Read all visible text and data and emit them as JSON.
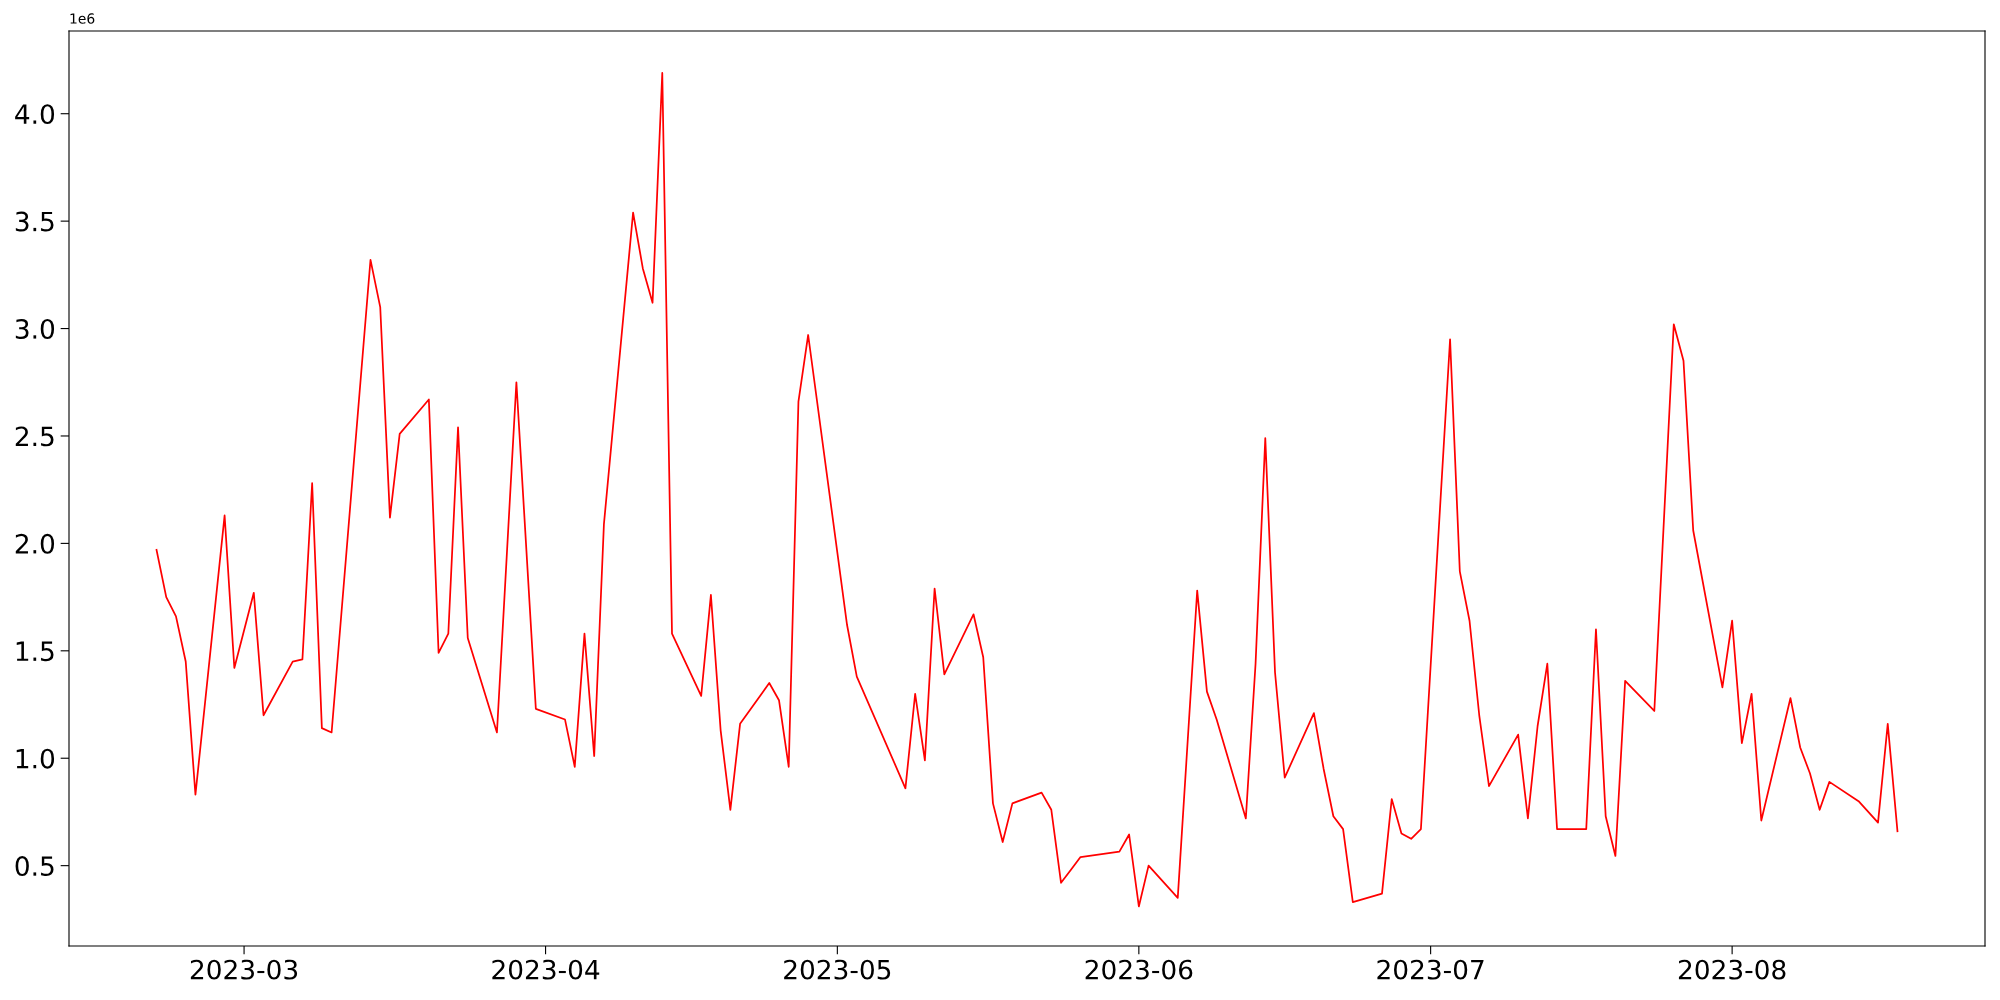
{
  "chart_data": {
    "type": "line",
    "x": [
      "2023-02-20",
      "2023-02-21",
      "2023-02-22",
      "2023-02-23",
      "2023-02-24",
      "2023-02-27",
      "2023-02-28",
      "2023-03-02",
      "2023-03-03",
      "2023-03-06",
      "2023-03-07",
      "2023-03-08",
      "2023-03-09",
      "2023-03-10",
      "2023-03-14",
      "2023-03-15",
      "2023-03-16",
      "2023-03-17",
      "2023-03-20",
      "2023-03-21",
      "2023-03-22",
      "2023-03-23",
      "2023-03-24",
      "2023-03-27",
      "2023-03-29",
      "2023-03-31",
      "2023-04-03",
      "2023-04-04",
      "2023-04-05",
      "2023-04-06",
      "2023-04-07",
      "2023-04-10",
      "2023-04-11",
      "2023-04-12",
      "2023-04-13",
      "2023-04-14",
      "2023-04-17",
      "2023-04-18",
      "2023-04-19",
      "2023-04-20",
      "2023-04-21",
      "2023-04-24",
      "2023-04-25",
      "2023-04-26",
      "2023-04-27",
      "2023-04-28",
      "2023-05-02",
      "2023-05-03",
      "2023-05-08",
      "2023-05-09",
      "2023-05-10",
      "2023-05-11",
      "2023-05-12",
      "2023-05-15",
      "2023-05-16",
      "2023-05-17",
      "2023-05-18",
      "2023-05-19",
      "2023-05-22",
      "2023-05-23",
      "2023-05-24",
      "2023-05-25",
      "2023-05-26",
      "2023-05-30",
      "2023-05-31",
      "2023-06-01",
      "2023-06-02",
      "2023-06-05",
      "2023-06-07",
      "2023-06-08",
      "2023-06-09",
      "2023-06-12",
      "2023-06-13",
      "2023-06-14",
      "2023-06-15",
      "2023-06-16",
      "2023-06-19",
      "2023-06-20",
      "2023-06-21",
      "2023-06-22",
      "2023-06-23",
      "2023-06-26",
      "2023-06-27",
      "2023-06-28",
      "2023-06-29",
      "2023-06-30",
      "2023-07-03",
      "2023-07-04",
      "2023-07-05",
      "2023-07-06",
      "2023-07-07",
      "2023-07-10",
      "2023-07-11",
      "2023-07-12",
      "2023-07-13",
      "2023-07-14",
      "2023-07-17",
      "2023-07-18",
      "2023-07-19",
      "2023-07-20",
      "2023-07-21",
      "2023-07-24",
      "2023-07-26",
      "2023-07-27",
      "2023-07-28",
      "2023-07-31",
      "2023-08-01",
      "2023-08-02",
      "2023-08-03",
      "2023-08-04",
      "2023-08-07",
      "2023-08-08",
      "2023-08-09",
      "2023-08-10",
      "2023-08-11",
      "2023-08-14",
      "2023-08-16",
      "2023-08-17",
      "2023-08-18"
    ],
    "series": [
      {
        "color": "#ff0000",
        "values": [
          1.97,
          1.75,
          1.66,
          1.45,
          0.83,
          2.13,
          1.42,
          1.77,
          1.2,
          1.45,
          1.46,
          2.28,
          1.14,
          1.12,
          3.32,
          3.1,
          2.12,
          2.51,
          2.67,
          1.49,
          1.58,
          2.54,
          1.56,
          1.12,
          2.75,
          1.23,
          1.18,
          0.96,
          1.58,
          1.01,
          2.09,
          3.54,
          3.28,
          3.12,
          4.19,
          1.58,
          1.29,
          1.76,
          1.13,
          0.76,
          1.16,
          1.35,
          1.27,
          0.96,
          2.66,
          2.97,
          1.62,
          1.38,
          0.86,
          1.3,
          0.99,
          1.79,
          1.39,
          1.67,
          1.47,
          0.79,
          0.61,
          0.79,
          0.84,
          0.76,
          0.42,
          0.48,
          0.54,
          0.565,
          0.645,
          0.31,
          0.5,
          0.35,
          1.78,
          1.31,
          1.18,
          0.72,
          1.44,
          2.49,
          1.4,
          0.91,
          1.21,
          0.95,
          0.73,
          0.67,
          0.33,
          0.37,
          0.81,
          0.65,
          0.625,
          0.67,
          2.95,
          1.87,
          1.64,
          1.2,
          0.87,
          1.11,
          0.72,
          1.15,
          1.44,
          0.67,
          0.67,
          1.6,
          0.73,
          0.545,
          1.36,
          1.22,
          3.02,
          2.85,
          2.06,
          1.33,
          1.64,
          1.07,
          1.3,
          0.71,
          1.28,
          1.05,
          0.93,
          0.76,
          0.89,
          0.8,
          0.7,
          1.16,
          0.66
        ]
      }
    ],
    "xlim": [
      "2023-02-11",
      "2023-08-27"
    ],
    "xticks": [
      {
        "value": "2023-03-01",
        "label": "2023-03"
      },
      {
        "value": "2023-04-01",
        "label": "2023-04"
      },
      {
        "value": "2023-05-01",
        "label": "2023-05"
      },
      {
        "value": "2023-06-01",
        "label": "2023-06"
      },
      {
        "value": "2023-07-01",
        "label": "2023-07"
      },
      {
        "value": "2023-08-01",
        "label": "2023-08"
      }
    ],
    "ylim": [
      0.126,
      4.385
    ],
    "yticks": [
      0.5,
      {
        "value": 1,
        "label": "1.0"
      },
      1.5,
      {
        "value": 2,
        "label": "2.0"
      },
      2.5,
      {
        "value": 3,
        "label": "3.0"
      },
      3.5,
      {
        "value": 4,
        "label": "4.0"
      }
    ],
    "annotations": [
      "1e6"
    ],
    "grid": false,
    "legend": false,
    "marker": "none",
    "line_style": "solid"
  }
}
